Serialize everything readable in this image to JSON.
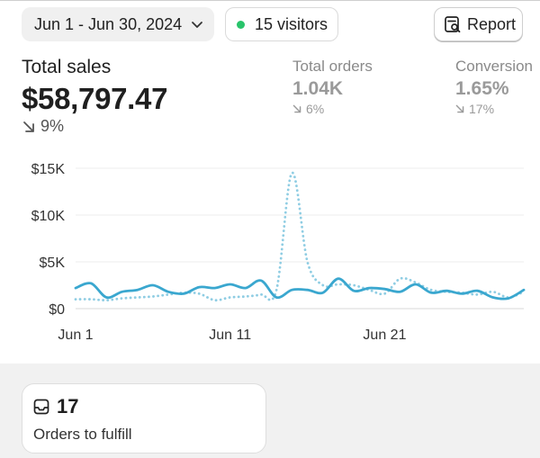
{
  "header": {
    "date_range": "Jun 1 - Jun 30, 2024",
    "visitors": "15 visitors",
    "report_label": "Report"
  },
  "metrics": {
    "total_sales": {
      "label": "Total sales",
      "value": "$58,797.47",
      "change": "9%"
    },
    "total_orders": {
      "label": "Total orders",
      "value": "1.04K",
      "change": "6%"
    },
    "conversion": {
      "label": "Conversion",
      "value": "1.65%",
      "change": "17%"
    }
  },
  "colors": {
    "current_series": "#3aa7cf",
    "previous_series": "#8fcde3",
    "visitors_dot": "#29c46b"
  },
  "chart_data": {
    "type": "line",
    "y_ticks": [
      "$0",
      "$5K",
      "$10K",
      "$15K"
    ],
    "x_ticks": [
      "Jun 1",
      "Jun 11",
      "Jun 21"
    ],
    "ylim": [
      0,
      15000
    ],
    "xlim": [
      1,
      30
    ],
    "grid": true,
    "series": [
      {
        "style": "solid",
        "x": [
          1,
          2,
          3,
          4,
          5,
          6,
          7,
          8,
          9,
          10,
          11,
          12,
          13,
          14,
          15,
          16,
          17,
          18,
          19,
          20,
          21,
          22,
          23,
          24,
          25,
          26,
          27,
          28,
          29,
          30
        ],
        "values": [
          2200,
          2700,
          1200,
          1800,
          2000,
          2500,
          1800,
          1600,
          2300,
          2200,
          2600,
          2200,
          3000,
          1200,
          2000,
          2000,
          1700,
          3200,
          1900,
          2200,
          2100,
          1800,
          2600,
          1700,
          1900,
          1600,
          1900,
          1200,
          1100,
          2000
        ]
      },
      {
        "style": "dotted",
        "x": [
          1,
          2,
          3,
          4,
          5,
          6,
          7,
          8,
          9,
          10,
          11,
          12,
          13,
          14,
          15,
          16,
          17,
          18,
          19,
          20,
          21,
          22,
          23,
          24,
          25,
          26,
          27,
          28,
          29,
          30
        ],
        "values": [
          1000,
          1000,
          900,
          1100,
          1200,
          1300,
          1500,
          1700,
          1600,
          900,
          1200,
          1300,
          1500,
          2000,
          14500,
          5000,
          2500,
          2600,
          2500,
          2000,
          1600,
          3200,
          2800,
          2000,
          1800,
          1700,
          1500,
          1800,
          1200,
          1800
        ]
      }
    ]
  },
  "fulfill": {
    "count": "17",
    "label": "Orders to fulfill"
  }
}
